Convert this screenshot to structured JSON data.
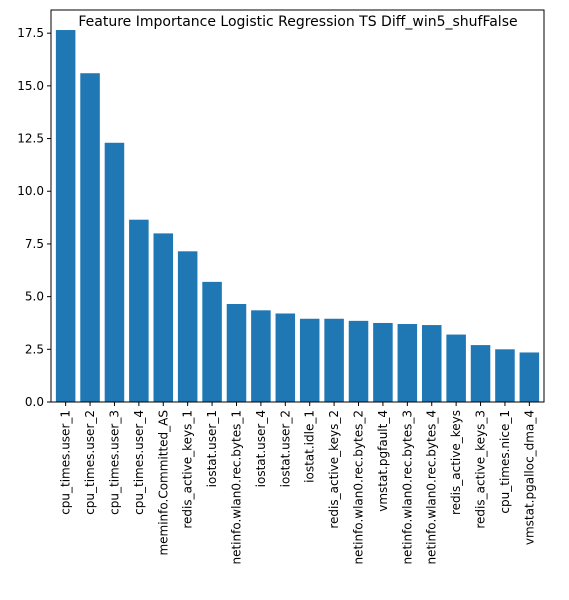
{
  "chart_data": {
    "type": "bar",
    "title": "Feature Importance Logistic Regression TS Diff_win5_shufFalse",
    "xlabel": "",
    "ylabel": "",
    "ylim": [
      0,
      18.6
    ],
    "yticks": [
      0.0,
      2.5,
      5.0,
      7.5,
      10.0,
      12.5,
      15.0,
      17.5
    ],
    "ytick_labels": [
      "0.0",
      "2.5",
      "5.0",
      "7.5",
      "10.0",
      "12.5",
      "15.0",
      "17.5"
    ],
    "bar_color": "#1f77b4",
    "grid": false,
    "categories": [
      "cpu_times.user_1",
      "cpu_times.user_2",
      "cpu_times.user_3",
      "cpu_times.user_4",
      "meminfo.Committed_AS",
      "redis_active_keys_1",
      "iostat.user_1",
      "netinfo.wlan0.rec.bytes_1",
      "iostat.user_4",
      "iostat.user_2",
      "iostat.idle_1",
      "redis_active_keys_2",
      "netinfo.wlan0.rec.bytes_2",
      "vmstat.pgfault_4",
      "netinfo.wlan0.rec.bytes_3",
      "netinfo.wlan0.rec.bytes_4",
      "redis_active_keys",
      "redis_active_keys_3",
      "cpu_times.nice_1",
      "vmstat.pgalloc_dma_4"
    ],
    "values": [
      17.65,
      15.6,
      12.3,
      8.65,
      8.0,
      7.15,
      5.7,
      4.65,
      4.35,
      4.2,
      3.95,
      3.95,
      3.85,
      3.75,
      3.7,
      3.65,
      3.2,
      2.7,
      2.5,
      2.35
    ]
  }
}
